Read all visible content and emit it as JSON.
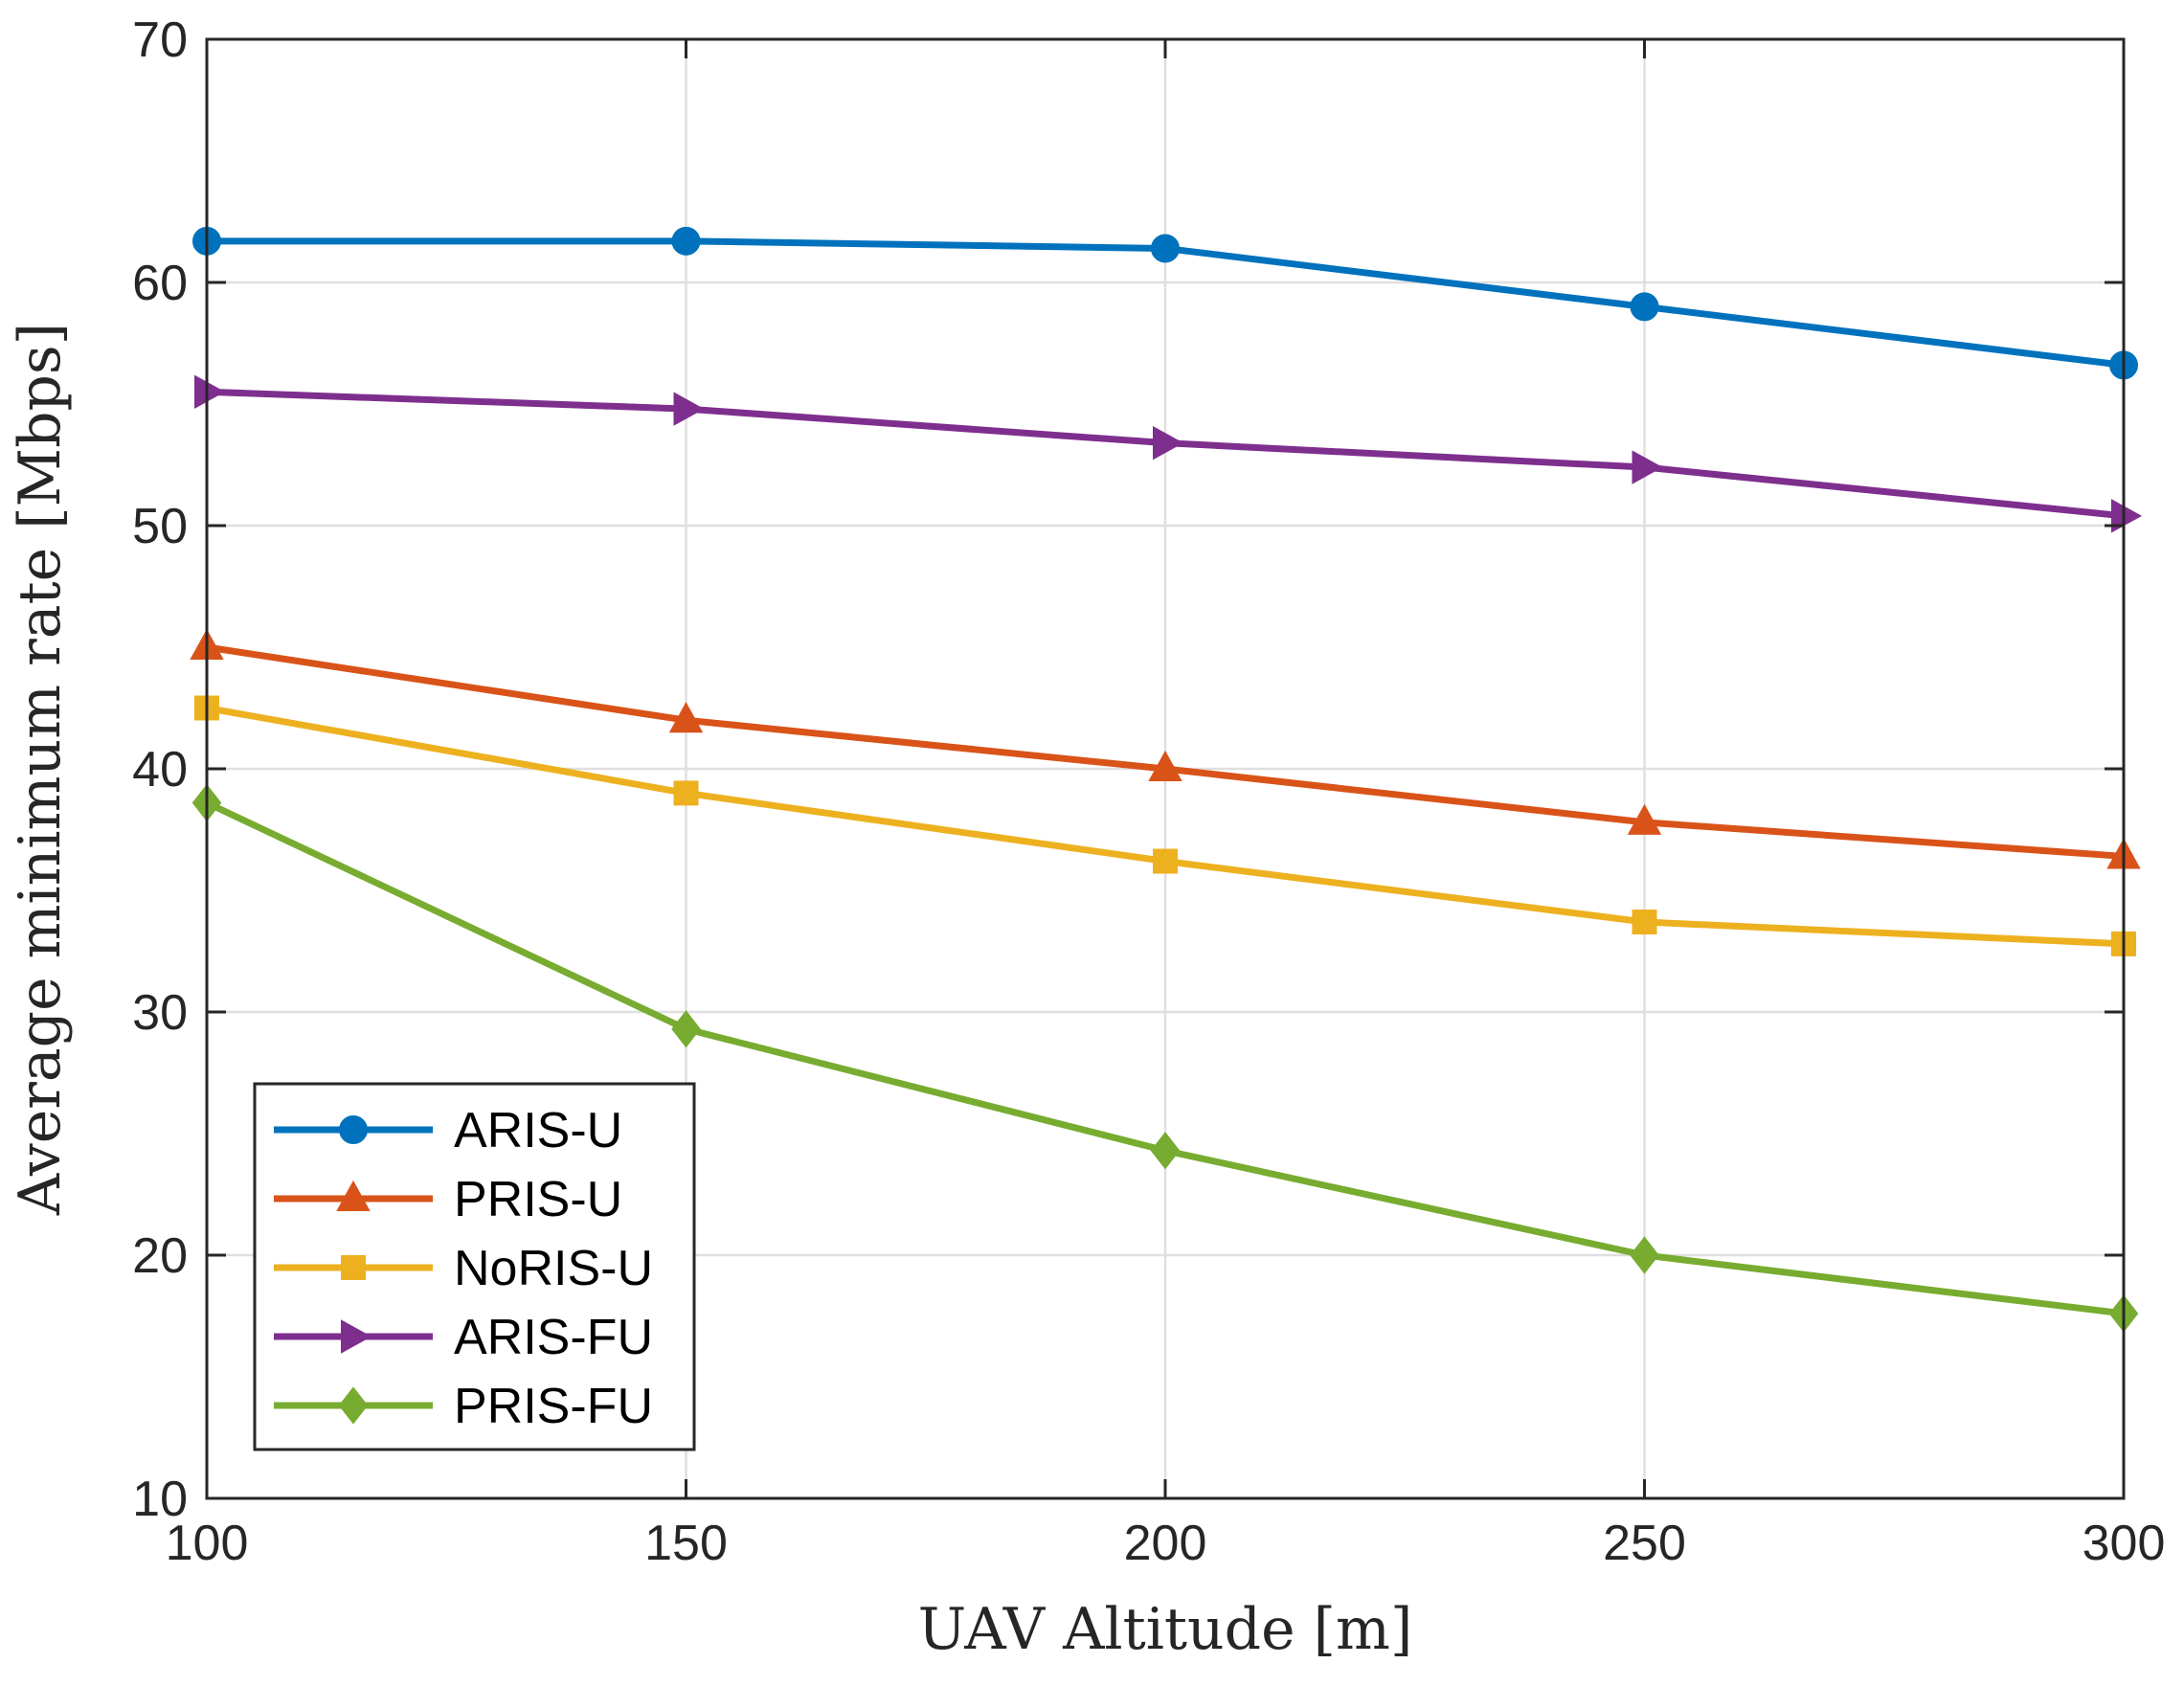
{
  "chart_data": {
    "type": "line",
    "title": "",
    "xlabel": "UAV Altitude [m]",
    "ylabel": "Average minimum rate [Mbps]",
    "xlim": [
      100,
      300
    ],
    "ylim": [
      10,
      70
    ],
    "xticks": [
      100,
      150,
      200,
      250,
      300
    ],
    "yticks": [
      10,
      20,
      30,
      40,
      50,
      60,
      70
    ],
    "xtick_labels": [
      "100",
      "150",
      "200",
      "250",
      "300"
    ],
    "ytick_labels": [
      "10",
      "20",
      "30",
      "40",
      "50",
      "60",
      "70"
    ],
    "grid": true,
    "legend_position": "bottom-left",
    "x": [
      100,
      150,
      200,
      250,
      300
    ],
    "series": [
      {
        "name": "ARIS-U",
        "color": "#0072BD",
        "marker": "circle",
        "values": [
          61.7,
          61.7,
          61.4,
          59.0,
          56.6
        ]
      },
      {
        "name": "PRIS-U",
        "color": "#D95319",
        "marker": "triangle-up",
        "values": [
          45.0,
          42.0,
          40.0,
          37.8,
          36.4
        ]
      },
      {
        "name": "NoRIS-U",
        "color": "#EDB120",
        "marker": "square",
        "values": [
          42.5,
          39.0,
          36.2,
          33.7,
          32.8
        ]
      },
      {
        "name": "ARIS-FU",
        "color": "#7E2F8E",
        "marker": "triangle-right",
        "values": [
          55.5,
          54.8,
          53.4,
          52.4,
          50.4
        ]
      },
      {
        "name": "PRIS-FU",
        "color": "#77AC30",
        "marker": "diamond",
        "values": [
          38.6,
          29.3,
          24.3,
          20.0,
          17.6
        ]
      }
    ]
  }
}
